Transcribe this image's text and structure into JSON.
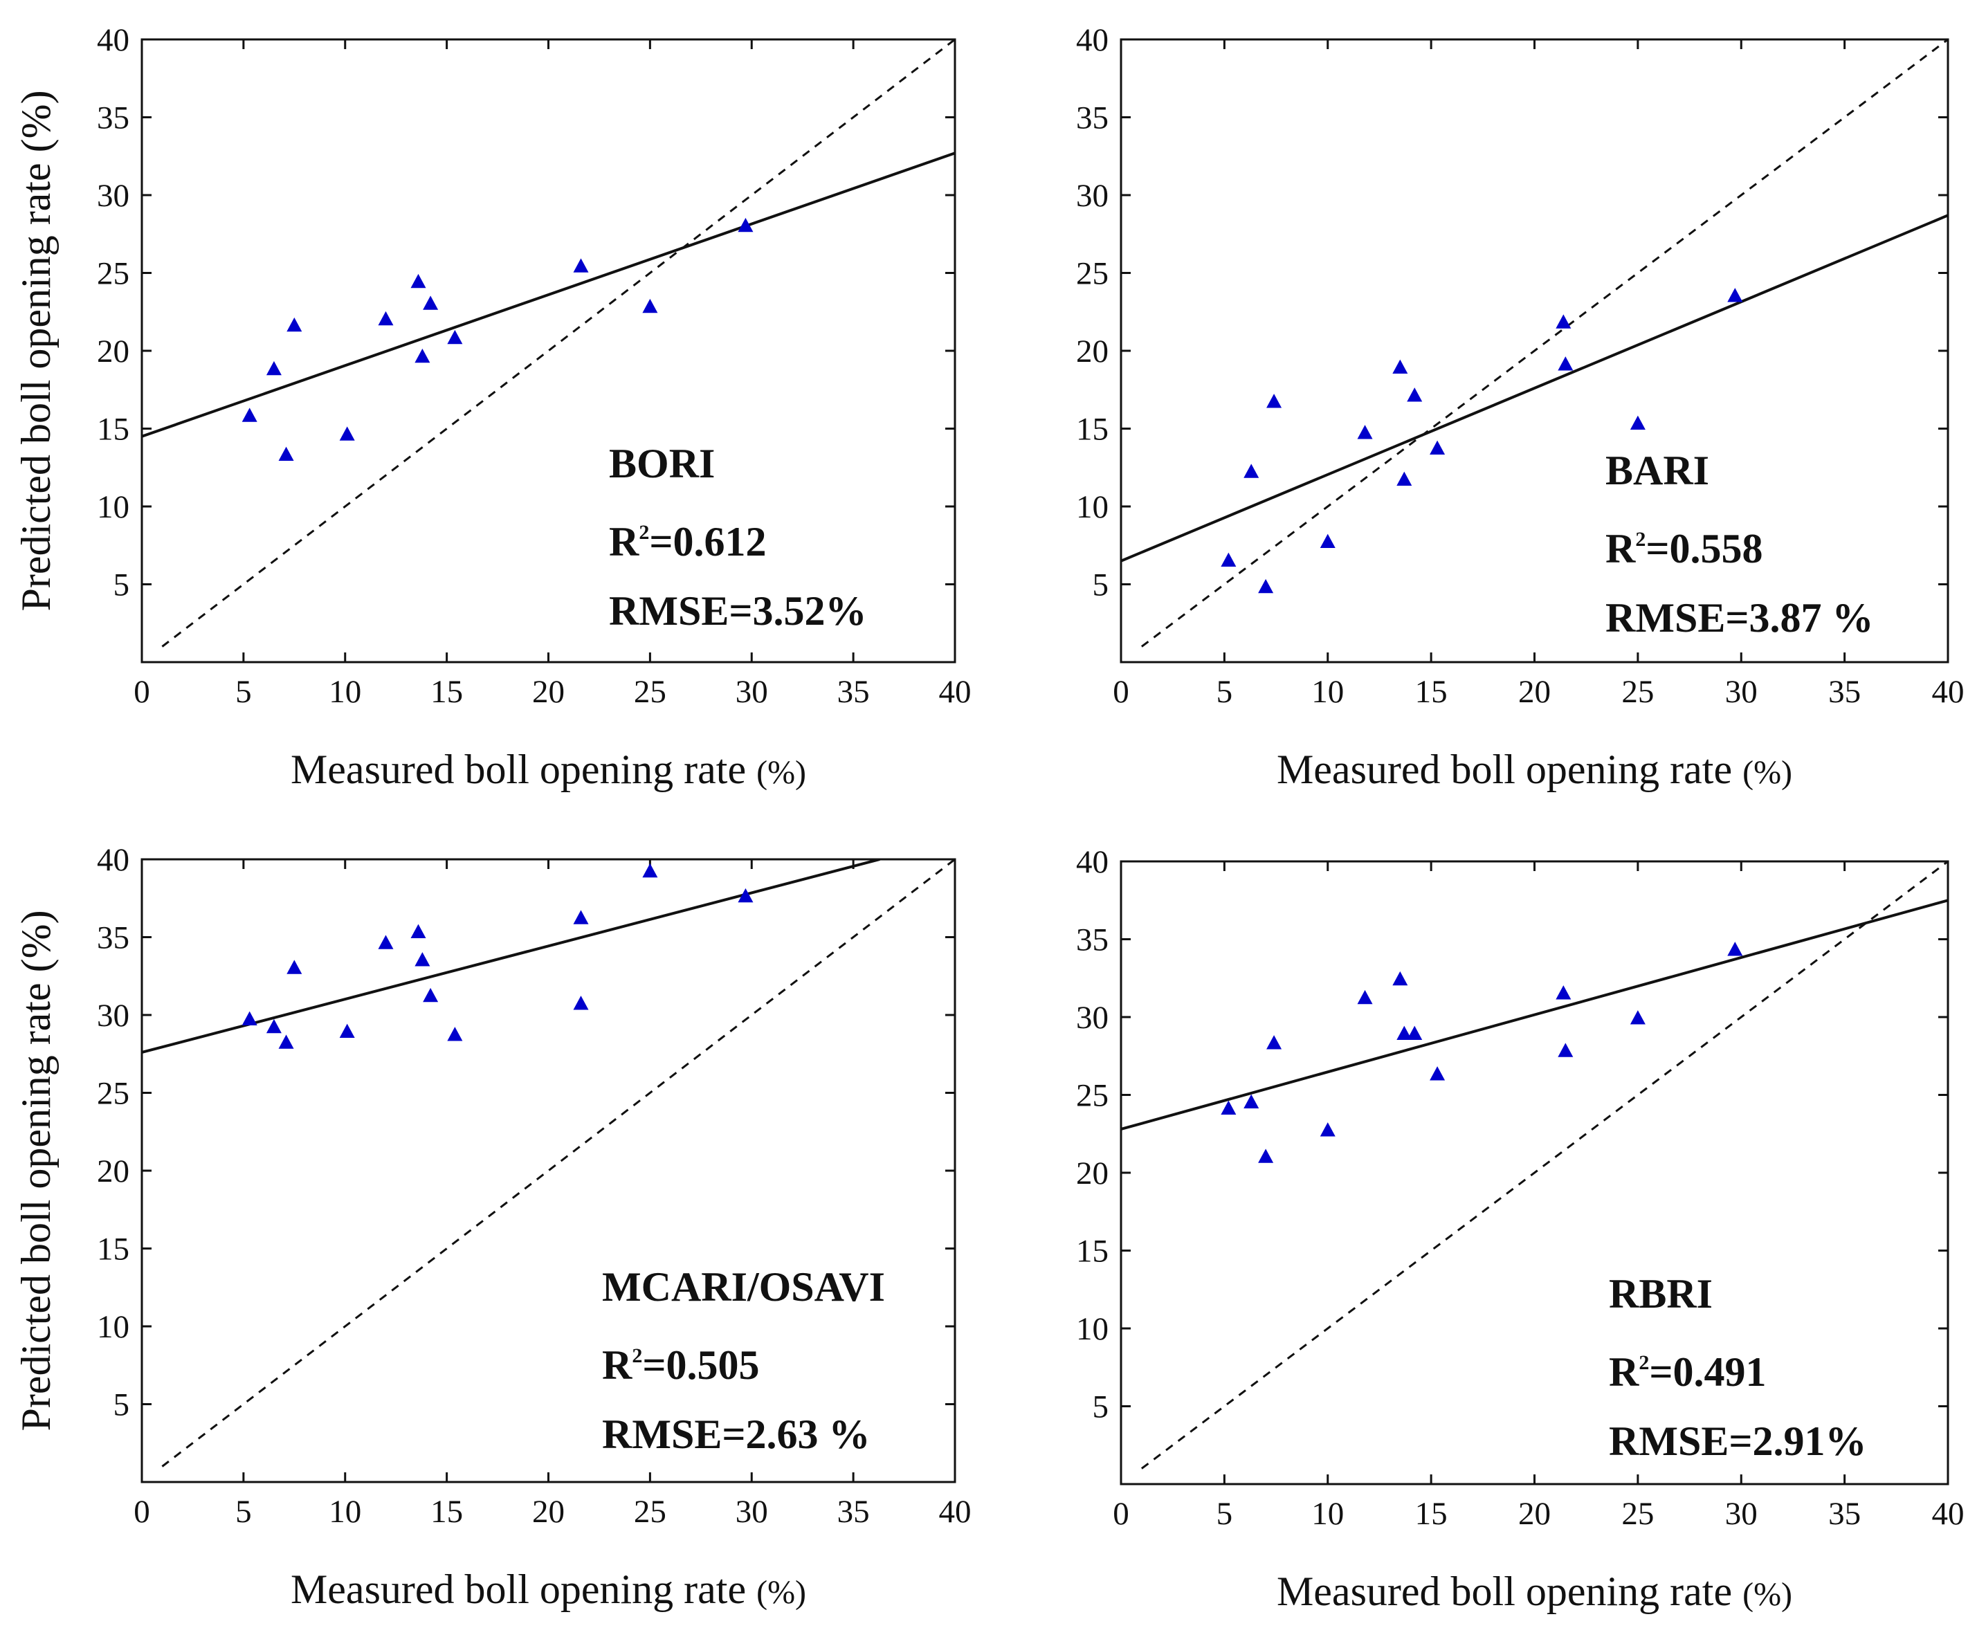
{
  "chart_data": [
    {
      "type": "scatter",
      "title": "BORI",
      "xlabel": "Measured boll opening rate",
      "xlabel_unit": "(%)",
      "ylabel": "Predicted boll opening rate (%)",
      "xlim": [
        0,
        40
      ],
      "ylim": [
        0,
        40
      ],
      "x_ticks": [
        0,
        5,
        10,
        15,
        20,
        25,
        30,
        35,
        40
      ],
      "y_ticks": [
        5,
        10,
        15,
        20,
        25,
        30,
        35,
        40
      ],
      "fit_line": [
        [
          0,
          14.5
        ],
        [
          40,
          32.7
        ]
      ],
      "reference_line": [
        [
          1,
          1
        ],
        [
          40,
          40
        ]
      ],
      "annotation": {
        "name": "BORI",
        "r2_prefix": "R",
        "r2_sup": "2",
        "r2_value": "=0.612",
        "rmse": "RMSE=3.52%"
      },
      "marker_color": "#0000cc",
      "points": [
        [
          5.3,
          15.8
        ],
        [
          6.5,
          18.8
        ],
        [
          7.1,
          13.3
        ],
        [
          7.5,
          21.6
        ],
        [
          10.1,
          14.6
        ],
        [
          12,
          22
        ],
        [
          13.6,
          24.4
        ],
        [
          13.8,
          19.6
        ],
        [
          14.2,
          23
        ],
        [
          15.4,
          20.8
        ],
        [
          21.6,
          25.4
        ],
        [
          25,
          22.8
        ],
        [
          29.7,
          28
        ]
      ]
    },
    {
      "type": "scatter",
      "title": "BARI",
      "xlabel": "Measured boll opening rate",
      "xlabel_unit": "(%)",
      "ylabel": "",
      "xlim": [
        0,
        40
      ],
      "ylim": [
        0,
        40
      ],
      "x_ticks": [
        0,
        5,
        10,
        15,
        20,
        25,
        30,
        35,
        40
      ],
      "y_ticks": [
        5,
        10,
        15,
        20,
        25,
        30,
        35,
        40
      ],
      "fit_line": [
        [
          0,
          6.5
        ],
        [
          40,
          28.7
        ]
      ],
      "reference_line": [
        [
          1,
          1
        ],
        [
          40,
          40
        ]
      ],
      "annotation": {
        "name": "BARI",
        "r2_prefix": "R",
        "r2_sup": "2",
        "r2_value": "=0.558",
        "rmse": "RMSE=3.87 %"
      },
      "marker_color": "#0000cc",
      "points": [
        [
          5.2,
          6.5
        ],
        [
          6.3,
          12.2
        ],
        [
          7,
          4.8
        ],
        [
          7.4,
          16.7
        ],
        [
          10,
          7.7
        ],
        [
          11.8,
          14.7
        ],
        [
          13.5,
          18.9
        ],
        [
          13.7,
          11.7
        ],
        [
          14.2,
          17.1
        ],
        [
          15.3,
          13.7
        ],
        [
          21.4,
          21.8
        ],
        [
          21.5,
          19.1
        ],
        [
          25,
          15.3
        ],
        [
          29.7,
          23.5
        ]
      ]
    },
    {
      "type": "scatter",
      "title": "MCARI/OSAVI",
      "xlabel": "Measured boll opening rate",
      "xlabel_unit": "(%)",
      "ylabel": "Predicted boll opening rate (%)",
      "xlim": [
        0,
        40
      ],
      "ylim": [
        0,
        40
      ],
      "x_ticks": [
        0,
        5,
        10,
        15,
        20,
        25,
        30,
        35,
        40
      ],
      "y_ticks": [
        5,
        10,
        15,
        20,
        25,
        30,
        35,
        40
      ],
      "fit_line": [
        [
          0,
          27.6
        ],
        [
          36.3,
          40
        ]
      ],
      "reference_line": [
        [
          1,
          1
        ],
        [
          40,
          40
        ]
      ],
      "annotation": {
        "name": "MCARI/OSAVI",
        "r2_prefix": "R",
        "r2_sup": "2",
        "r2_value": "=0.505",
        "rmse": "RMSE=2.63 %"
      },
      "marker_color": "#0000cc",
      "points": [
        [
          5.3,
          29.7
        ],
        [
          6.5,
          29.2
        ],
        [
          7.1,
          28.2
        ],
        [
          7.5,
          33
        ],
        [
          10.1,
          28.9
        ],
        [
          12,
          34.6
        ],
        [
          13.6,
          35.3
        ],
        [
          13.8,
          33.5
        ],
        [
          14.2,
          31.2
        ],
        [
          15.4,
          28.7
        ],
        [
          21.6,
          36.2
        ],
        [
          21.6,
          30.7
        ],
        [
          25,
          39.2
        ],
        [
          29.7,
          37.6
        ]
      ]
    },
    {
      "type": "scatter",
      "title": "RBRI",
      "xlabel": "Measured boll opening rate",
      "xlabel_unit": "(%)",
      "ylabel": "",
      "xlim": [
        0,
        40
      ],
      "ylim": [
        0,
        40
      ],
      "x_ticks": [
        0,
        5,
        10,
        15,
        20,
        25,
        30,
        35,
        40
      ],
      "y_ticks": [
        5,
        10,
        15,
        20,
        25,
        30,
        35,
        40
      ],
      "fit_line": [
        [
          0,
          22.8
        ],
        [
          40,
          37.5
        ]
      ],
      "reference_line": [
        [
          1,
          1
        ],
        [
          40,
          40
        ]
      ],
      "annotation": {
        "name": "RBRI",
        "r2_prefix": "R",
        "r2_sup": "2",
        "r2_value": "=0.491",
        "rmse": "RMSE=2.91%"
      },
      "marker_color": "#0000cc",
      "points": [
        [
          5.2,
          24.1
        ],
        [
          6.3,
          24.5
        ],
        [
          7,
          21
        ],
        [
          7.4,
          28.3
        ],
        [
          10,
          22.7
        ],
        [
          11.8,
          31.2
        ],
        [
          13.5,
          32.4
        ],
        [
          13.7,
          28.9
        ],
        [
          14.2,
          28.9
        ],
        [
          15.3,
          26.3
        ],
        [
          21.4,
          31.5
        ],
        [
          21.5,
          27.8
        ],
        [
          25,
          29.9
        ],
        [
          29.7,
          34.3
        ]
      ]
    }
  ]
}
